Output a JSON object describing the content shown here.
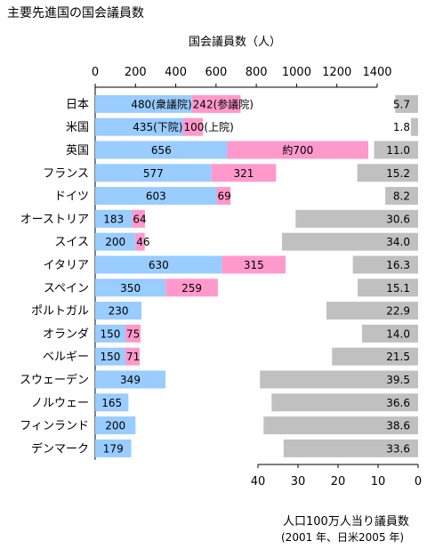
{
  "header": {
    "title": "主要先進国の国会議員数"
  },
  "chart_data": {
    "type": "bar",
    "title": "主要先進国の国会議員数",
    "top_axis": {
      "label": "国会議員数（人）",
      "range": [
        0,
        1400
      ],
      "ticks": [
        0,
        200,
        400,
        600,
        800,
        1000,
        1200,
        1400
      ],
      "tick_labels": [
        "0",
        "200",
        "400",
        "600",
        "800",
        "1000",
        "1200",
        "1400"
      ]
    },
    "bottom_axis": {
      "label": "人口100万人当り議員数",
      "note": "(2001 年、日米2005 年)",
      "range": [
        0,
        40
      ],
      "reversed": true,
      "ticks": [
        40,
        30,
        20,
        10,
        0
      ],
      "tick_labels": [
        "40",
        "30",
        "20",
        "10",
        "0"
      ]
    },
    "colors": {
      "lower_house": "#99ccff",
      "upper_house": "#ff99cc",
      "per_million": "#c0c0c0"
    },
    "categories": [
      "日本",
      "米国",
      "英国",
      "フランス",
      "ドイツ",
      "オーストリア",
      "スイス",
      "イタリア",
      "スペイン",
      "ポルトガル",
      "オランダ",
      "ベルギー",
      "スウェーデン",
      "ノルウェー",
      "フィンランド",
      "デンマーク"
    ],
    "lower_house": [
      480,
      435,
      656,
      577,
      603,
      183,
      200,
      630,
      350,
      230,
      150,
      150,
      349,
      165,
      200,
      179
    ],
    "lower_house_labels": [
      "480(衆議院)",
      "435(下院)",
      "656",
      "577",
      "603",
      "183",
      "200",
      "630",
      "350",
      "230",
      "150",
      "150",
      "349",
      "165",
      "200",
      "179"
    ],
    "upper_house": [
      242,
      100,
      700,
      321,
      69,
      64,
      46,
      315,
      259,
      null,
      75,
      71,
      null,
      null,
      null,
      null
    ],
    "upper_house_labels": [
      "242(参議院)",
      "100(上院)",
      "約700",
      "321",
      "69",
      "64",
      "46",
      "315",
      "259",
      "",
      "75",
      "71",
      "",
      "",
      "",
      ""
    ],
    "per_million": [
      5.7,
      1.8,
      11.0,
      15.2,
      8.2,
      30.6,
      34.0,
      16.3,
      15.1,
      22.9,
      14.0,
      21.5,
      39.5,
      36.6,
      38.6,
      33.6
    ],
    "per_million_labels": [
      "5.7",
      "1.8",
      "11.0",
      "15.2",
      "8.2",
      "30.6",
      "34.0",
      "16.3",
      "15.1",
      "22.9",
      "14.0",
      "21.5",
      "39.5",
      "36.6",
      "38.6",
      "33.6"
    ]
  }
}
